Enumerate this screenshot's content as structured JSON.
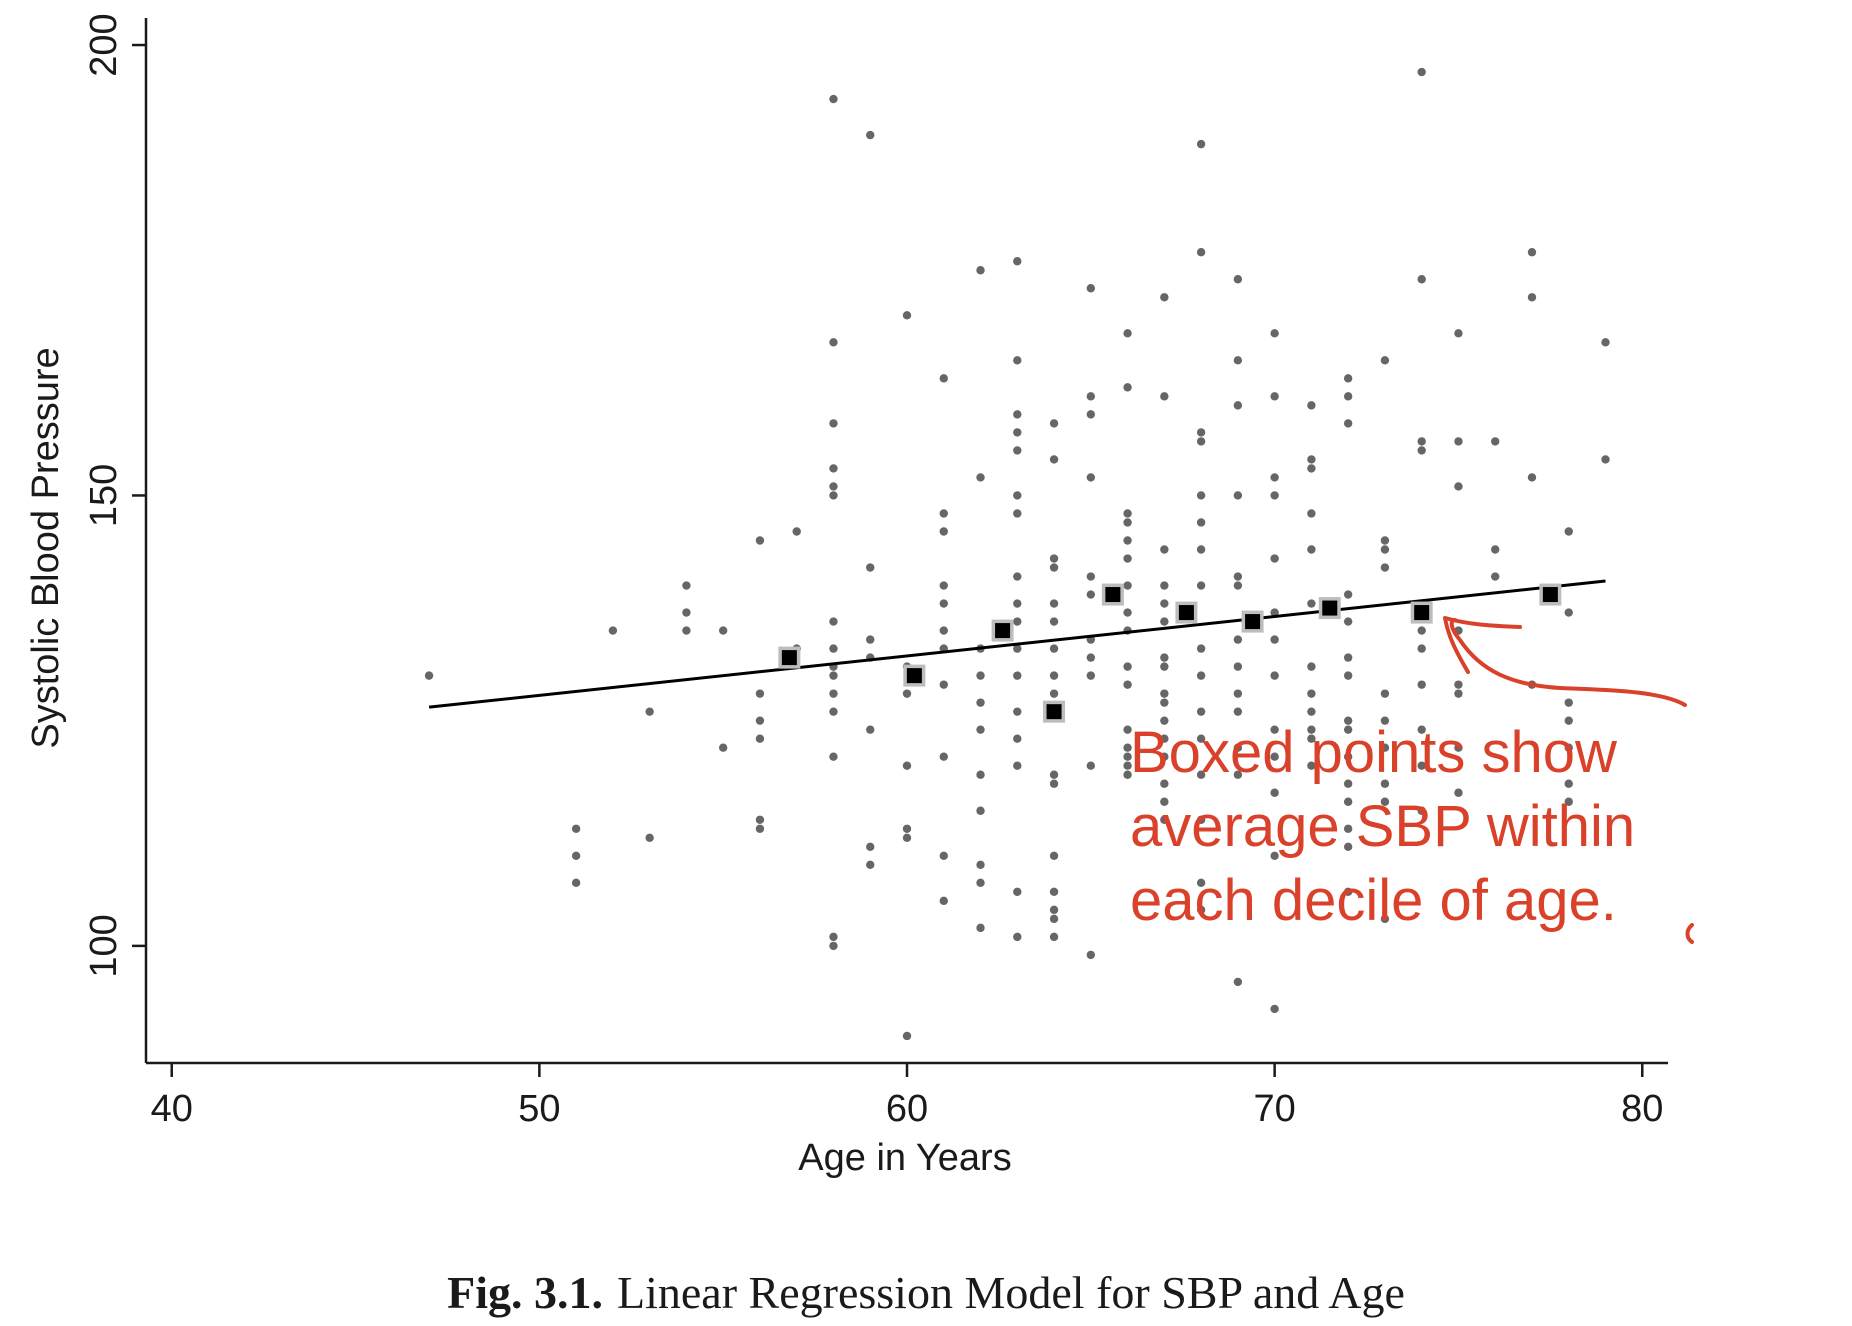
{
  "caption": {
    "label": "Fig. 3.1.",
    "text": "Linear Regression Model for SBP and Age"
  },
  "annotation": {
    "lines": [
      "Boxed points show",
      "average SBP within",
      "each decile of age."
    ],
    "color": "#d9412b"
  },
  "chart_data": {
    "type": "scatter",
    "xlabel": "Age in Years",
    "ylabel": "Systolic Blood Pressure",
    "xlim": [
      39.3,
      80.7
    ],
    "ylim": [
      87,
      203
    ],
    "xticks": [
      40,
      50,
      60,
      70,
      80
    ],
    "yticks": [
      100,
      150,
      200
    ],
    "grid": false,
    "series": [
      {
        "kind": "points",
        "color": "#666666",
        "points": [
          [
            47,
            130
          ],
          [
            51,
            113
          ],
          [
            51,
            110
          ],
          [
            51,
            107
          ],
          [
            52,
            135
          ],
          [
            53,
            126
          ],
          [
            53,
            112
          ],
          [
            54,
            140
          ],
          [
            54,
            137
          ],
          [
            54,
            135
          ],
          [
            55,
            135
          ],
          [
            55,
            122
          ],
          [
            56,
            145
          ],
          [
            56,
            128
          ],
          [
            56,
            125
          ],
          [
            56,
            123
          ],
          [
            56,
            114
          ],
          [
            56,
            113
          ],
          [
            57,
            146
          ],
          [
            57,
            133
          ],
          [
            58,
            194
          ],
          [
            58,
            167
          ],
          [
            58,
            158
          ],
          [
            58,
            153
          ],
          [
            58,
            151
          ],
          [
            58,
            150
          ],
          [
            58,
            136
          ],
          [
            58,
            133
          ],
          [
            58,
            131
          ],
          [
            58,
            130
          ],
          [
            58,
            128
          ],
          [
            58,
            126
          ],
          [
            58,
            121
          ],
          [
            58,
            101
          ],
          [
            58,
            100
          ],
          [
            59,
            190
          ],
          [
            59,
            142
          ],
          [
            59,
            134
          ],
          [
            59,
            132
          ],
          [
            59,
            124
          ],
          [
            59,
            111
          ],
          [
            59,
            109
          ],
          [
            60,
            170
          ],
          [
            60,
            131
          ],
          [
            60,
            128
          ],
          [
            60,
            120
          ],
          [
            60,
            113
          ],
          [
            60,
            112
          ],
          [
            60,
            90
          ],
          [
            61,
            163
          ],
          [
            61,
            148
          ],
          [
            61,
            146
          ],
          [
            61,
            140
          ],
          [
            61,
            138
          ],
          [
            61,
            135
          ],
          [
            61,
            133
          ],
          [
            61,
            129
          ],
          [
            61,
            121
          ],
          [
            61,
            110
          ],
          [
            61,
            105
          ],
          [
            62,
            175
          ],
          [
            62,
            152
          ],
          [
            62,
            133
          ],
          [
            62,
            130
          ],
          [
            62,
            127
          ],
          [
            62,
            124
          ],
          [
            62,
            119
          ],
          [
            62,
            115
          ],
          [
            62,
            109
          ],
          [
            62,
            107
          ],
          [
            62,
            102
          ],
          [
            63,
            176
          ],
          [
            63,
            165
          ],
          [
            63,
            159
          ],
          [
            63,
            157
          ],
          [
            63,
            155
          ],
          [
            63,
            150
          ],
          [
            63,
            148
          ],
          [
            63,
            141
          ],
          [
            63,
            138
          ],
          [
            63,
            136
          ],
          [
            63,
            133
          ],
          [
            63,
            130
          ],
          [
            63,
            126
          ],
          [
            63,
            123
          ],
          [
            63,
            120
          ],
          [
            63,
            106
          ],
          [
            63,
            101
          ],
          [
            64,
            158
          ],
          [
            64,
            154
          ],
          [
            64,
            143
          ],
          [
            64,
            142
          ],
          [
            64,
            138
          ],
          [
            64,
            136
          ],
          [
            64,
            133
          ],
          [
            64,
            130
          ],
          [
            64,
            128
          ],
          [
            64,
            119
          ],
          [
            64,
            118
          ],
          [
            64,
            110
          ],
          [
            64,
            106
          ],
          [
            64,
            104
          ],
          [
            64,
            103
          ],
          [
            64,
            101
          ],
          [
            65,
            173
          ],
          [
            65,
            161
          ],
          [
            65,
            159
          ],
          [
            65,
            152
          ],
          [
            65,
            141
          ],
          [
            65,
            139
          ],
          [
            65,
            134
          ],
          [
            65,
            132
          ],
          [
            65,
            130
          ],
          [
            65,
            120
          ],
          [
            65,
            99
          ],
          [
            66,
            168
          ],
          [
            66,
            162
          ],
          [
            66,
            148
          ],
          [
            66,
            147
          ],
          [
            66,
            145
          ],
          [
            66,
            143
          ],
          [
            66,
            140
          ],
          [
            66,
            137
          ],
          [
            66,
            135
          ],
          [
            66,
            131
          ],
          [
            66,
            129
          ],
          [
            66,
            124
          ],
          [
            66,
            122
          ],
          [
            66,
            121
          ],
          [
            66,
            120
          ],
          [
            66,
            119
          ],
          [
            67,
            172
          ],
          [
            67,
            161
          ],
          [
            67,
            144
          ],
          [
            67,
            140
          ],
          [
            67,
            138
          ],
          [
            67,
            136
          ],
          [
            67,
            132
          ],
          [
            67,
            131
          ],
          [
            67,
            128
          ],
          [
            67,
            127
          ],
          [
            67,
            125
          ],
          [
            67,
            123
          ],
          [
            67,
            121
          ],
          [
            67,
            118
          ],
          [
            67,
            116
          ],
          [
            67,
            114
          ],
          [
            68,
            189
          ],
          [
            68,
            177
          ],
          [
            68,
            157
          ],
          [
            68,
            156
          ],
          [
            68,
            150
          ],
          [
            68,
            147
          ],
          [
            68,
            144
          ],
          [
            68,
            140
          ],
          [
            68,
            133
          ],
          [
            68,
            130
          ],
          [
            68,
            126
          ],
          [
            68,
            123
          ],
          [
            68,
            119
          ],
          [
            68,
            114
          ],
          [
            68,
            107
          ],
          [
            68,
            104
          ],
          [
            69,
            174
          ],
          [
            69,
            165
          ],
          [
            69,
            160
          ],
          [
            69,
            150
          ],
          [
            69,
            141
          ],
          [
            69,
            140
          ],
          [
            69,
            134
          ],
          [
            69,
            131
          ],
          [
            69,
            128
          ],
          [
            69,
            126
          ],
          [
            69,
            122
          ],
          [
            69,
            119
          ],
          [
            69,
            96
          ],
          [
            70,
            168
          ],
          [
            70,
            161
          ],
          [
            70,
            152
          ],
          [
            70,
            150
          ],
          [
            70,
            143
          ],
          [
            70,
            137
          ],
          [
            70,
            134
          ],
          [
            70,
            130
          ],
          [
            70,
            124
          ],
          [
            70,
            121
          ],
          [
            70,
            117
          ],
          [
            70,
            110
          ],
          [
            70,
            93
          ],
          [
            71,
            160
          ],
          [
            71,
            154
          ],
          [
            71,
            153
          ],
          [
            71,
            148
          ],
          [
            71,
            144
          ],
          [
            71,
            138
          ],
          [
            71,
            131
          ],
          [
            71,
            128
          ],
          [
            71,
            126
          ],
          [
            71,
            124
          ],
          [
            71,
            123
          ],
          [
            71,
            120
          ],
          [
            72,
            163
          ],
          [
            72,
            161
          ],
          [
            72,
            158
          ],
          [
            72,
            139
          ],
          [
            72,
            136
          ],
          [
            72,
            132
          ],
          [
            72,
            130
          ],
          [
            72,
            125
          ],
          [
            72,
            124
          ],
          [
            72,
            121
          ],
          [
            72,
            118
          ],
          [
            72,
            116
          ],
          [
            72,
            113
          ],
          [
            72,
            111
          ],
          [
            72,
            106
          ],
          [
            73,
            165
          ],
          [
            73,
            145
          ],
          [
            73,
            144
          ],
          [
            73,
            142
          ],
          [
            73,
            128
          ],
          [
            73,
            125
          ],
          [
            73,
            122
          ],
          [
            73,
            118
          ],
          [
            73,
            116
          ],
          [
            73,
            103
          ],
          [
            74,
            197
          ],
          [
            74,
            174
          ],
          [
            74,
            156
          ],
          [
            74,
            155
          ],
          [
            74,
            135
          ],
          [
            74,
            133
          ],
          [
            74,
            129
          ],
          [
            74,
            124
          ],
          [
            74,
            120
          ],
          [
            74,
            115
          ],
          [
            75,
            168
          ],
          [
            75,
            156
          ],
          [
            75,
            151
          ],
          [
            75,
            135
          ],
          [
            75,
            129
          ],
          [
            75,
            128
          ],
          [
            75,
            122
          ],
          [
            75,
            117
          ],
          [
            76,
            156
          ],
          [
            76,
            144
          ],
          [
            76,
            141
          ],
          [
            77,
            177
          ],
          [
            77,
            172
          ],
          [
            77,
            152
          ],
          [
            77,
            129
          ],
          [
            78,
            146
          ],
          [
            78,
            137
          ],
          [
            78,
            127
          ],
          [
            78,
            125
          ],
          [
            78,
            122
          ],
          [
            78,
            118
          ],
          [
            78,
            116
          ],
          [
            79,
            167
          ],
          [
            79,
            154
          ]
        ]
      },
      {
        "kind": "decile-means",
        "color": "#000000",
        "points": [
          [
            56.8,
            132
          ],
          [
            60.2,
            130
          ],
          [
            62.6,
            135
          ],
          [
            64,
            126
          ],
          [
            65.6,
            139
          ],
          [
            67.6,
            137
          ],
          [
            69.4,
            136
          ],
          [
            71.5,
            137.5
          ],
          [
            74,
            137
          ],
          [
            77.5,
            139
          ]
        ]
      },
      {
        "kind": "regression-line",
        "color": "#000000",
        "x": [
          47,
          79
        ],
        "y": [
          126.5,
          140.5
        ]
      }
    ]
  }
}
